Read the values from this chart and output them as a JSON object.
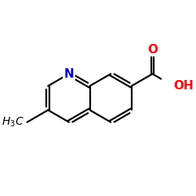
{
  "background_color": "#ffffff",
  "atom_color_N": "#0000cc",
  "atom_color_O": "#ff0000",
  "atom_color_C": "#000000",
  "bond_color": "#000000",
  "bond_lw": 1.6,
  "font_size_N": 11,
  "font_size_O": 11,
  "font_size_methyl": 10,
  "xlim": [
    -0.75,
    0.85
  ],
  "ylim": [
    -0.62,
    0.52
  ]
}
